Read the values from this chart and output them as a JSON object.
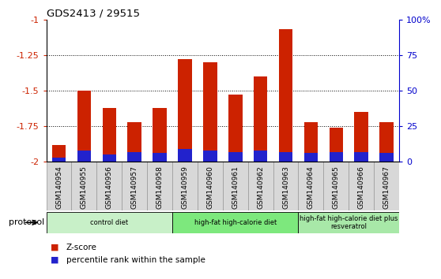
{
  "title": "GDS2413 / 29515",
  "samples": [
    "GSM140954",
    "GSM140955",
    "GSM140956",
    "GSM140957",
    "GSM140958",
    "GSM140959",
    "GSM140960",
    "GSM140961",
    "GSM140962",
    "GSM140963",
    "GSM140964",
    "GSM140965",
    "GSM140966",
    "GSM140967"
  ],
  "zscore": [
    -1.88,
    -1.5,
    -1.62,
    -1.72,
    -1.62,
    -1.28,
    -1.3,
    -1.53,
    -1.4,
    -1.07,
    -1.72,
    -1.76,
    -1.65,
    -1.72
  ],
  "percentile": [
    3,
    8,
    5,
    7,
    6,
    9,
    8,
    7,
    8,
    7,
    6,
    7,
    7,
    6
  ],
  "ylim_left": [
    -2.0,
    -1.0
  ],
  "yticks_left": [
    -2.0,
    -1.75,
    -1.5,
    -1.25,
    -1.0
  ],
  "ytick_labels_left": [
    "-2",
    "-1.75",
    "-1.5",
    "-1.25",
    "-1"
  ],
  "yticks_right": [
    0,
    25,
    50,
    75,
    100
  ],
  "ytick_labels_right": [
    "0",
    "25",
    "50",
    "75",
    "100%"
  ],
  "groups": [
    {
      "label": "control diet",
      "start": 0,
      "end": 5,
      "color": "#c8f0c8"
    },
    {
      "label": "high-fat high-calorie diet",
      "start": 5,
      "end": 10,
      "color": "#7de87d"
    },
    {
      "label": "high-fat high-calorie diet plus\nresveratrol",
      "start": 10,
      "end": 14,
      "color": "#a8e8a8"
    }
  ],
  "bar_color_red": "#cc2200",
  "bar_color_blue": "#2222cc",
  "bar_width": 0.55,
  "protocol_label": "protocol",
  "legend_red": "Z-score",
  "legend_blue": "percentile rank within the sample",
  "grid_lines": [
    -1.25,
    -1.5,
    -1.75
  ],
  "xlabel_color": "#cc2200",
  "ylabel_right_color": "#0000cc",
  "tick_label_bg": "#d8d8d8"
}
